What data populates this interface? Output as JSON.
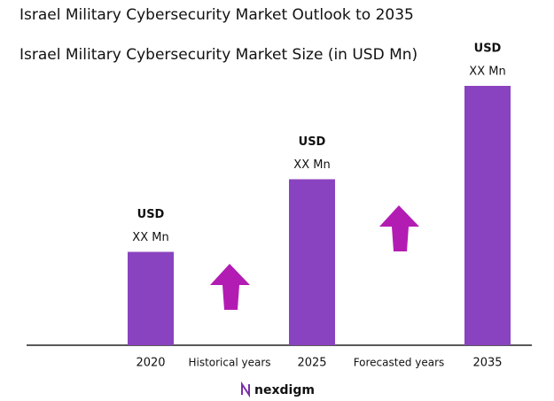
{
  "chart_data": {
    "type": "bar",
    "title": "Israel Military Cybersecurity Market Outlook to 2035",
    "subtitle": "Israel Military Cybersecurity Market Size (in USD Mn)",
    "categories": [
      "2020",
      "2025",
      "2035"
    ],
    "values": [
      36,
      64,
      100
    ],
    "bar_labels": [
      [
        "USD",
        "XX Mn"
      ],
      [
        "USD",
        "XX Mn"
      ],
      [
        "USD",
        "XX Mn"
      ]
    ],
    "period_labels": [
      "Historical years",
      "Forecasted years"
    ],
    "color": "#8a43c0",
    "arrow_color": "#b31cb3",
    "ylim": [
      0,
      100
    ],
    "brand": "nexdigm"
  }
}
